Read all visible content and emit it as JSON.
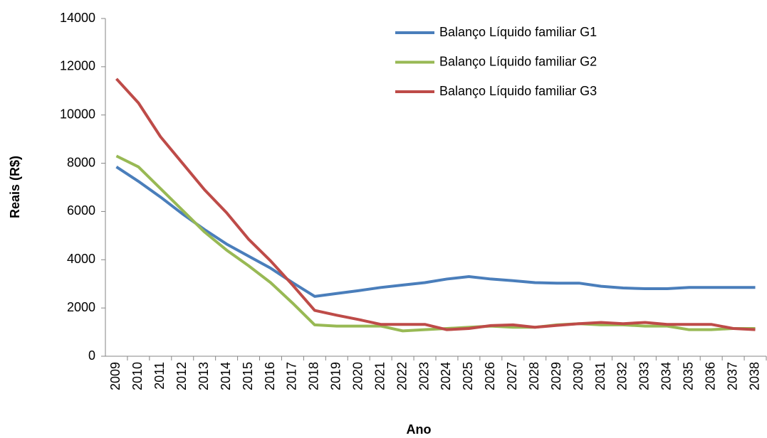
{
  "chart_data": {
    "type": "line",
    "x_label": "Ano",
    "y_label": "Reais (R$)",
    "categories": [
      "2009",
      "2010",
      "2011",
      "2012",
      "2013",
      "2014",
      "2015",
      "2016",
      "2017",
      "2018",
      "2019",
      "2020",
      "2021",
      "2022",
      "2023",
      "2024",
      "2025",
      "2026",
      "2027",
      "2028",
      "2029",
      "2030",
      "2031",
      "2032",
      "2033",
      "2034",
      "2035",
      "2036",
      "2037",
      "2038"
    ],
    "series": [
      {
        "name": "Balanço Líquido familiar G1",
        "color": "#4a7ebb",
        "values": [
          7850,
          7250,
          6600,
          5900,
          5250,
          4650,
          4150,
          3650,
          3050,
          2480,
          2600,
          2720,
          2850,
          2950,
          3050,
          3200,
          3300,
          3200,
          3130,
          3050,
          3030,
          3030,
          2900,
          2830,
          2800,
          2800,
          2850,
          2850,
          2850,
          2850
        ]
      },
      {
        "name": "Balanço Líquido familiar G2",
        "color": "#98b954",
        "values": [
          8300,
          7850,
          6950,
          6050,
          5150,
          4400,
          3750,
          3050,
          2200,
          1300,
          1250,
          1250,
          1250,
          1050,
          1100,
          1150,
          1200,
          1250,
          1200,
          1200,
          1300,
          1350,
          1300,
          1300,
          1250,
          1250,
          1100,
          1100,
          1150,
          1150
        ]
      },
      {
        "name": "Balanço Líquido familiar G3",
        "color": "#be4b48",
        "values": [
          11500,
          10500,
          9100,
          8000,
          6900,
          5950,
          4850,
          3950,
          2950,
          1900,
          1700,
          1520,
          1320,
          1320,
          1320,
          1100,
          1150,
          1270,
          1300,
          1200,
          1280,
          1350,
          1400,
          1350,
          1400,
          1320,
          1320,
          1320,
          1150,
          1100
        ]
      }
    ],
    "ylim": [
      0,
      14000
    ],
    "yticks": [
      0,
      2000,
      4000,
      6000,
      8000,
      10000,
      12000,
      14000
    ],
    "grid": false,
    "legend": "top-right"
  }
}
